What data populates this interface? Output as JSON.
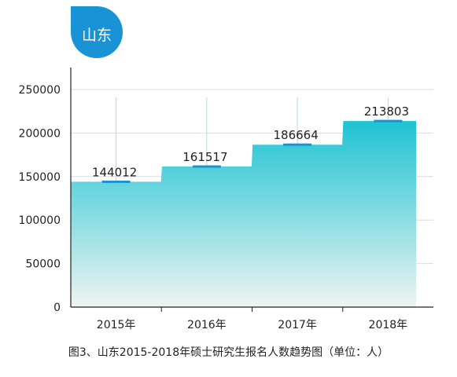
{
  "region_label": "山东",
  "caption": "图3、山东2015-2018年硕士研究生报名人数趋势图（单位：人）",
  "colors": {
    "badge": "#1a93d6",
    "area_top": "#1ec3d3",
    "area_bottom": "#eef4f1",
    "label_tick": "#1a93d6"
  },
  "chart_data": {
    "type": "area",
    "title": "",
    "xlabel": "",
    "ylabel": "",
    "categories": [
      "2015年",
      "2016年",
      "2017年",
      "2018年"
    ],
    "values": [
      144012,
      161517,
      186664,
      213803
    ],
    "data_labels": [
      "144012",
      "161517",
      "186664",
      "213803"
    ],
    "y_ticks": [
      "250000",
      "200000",
      "150000",
      "100000",
      "50000",
      "0"
    ],
    "ylim": [
      0,
      250000
    ],
    "grid": true,
    "legend": "none"
  }
}
